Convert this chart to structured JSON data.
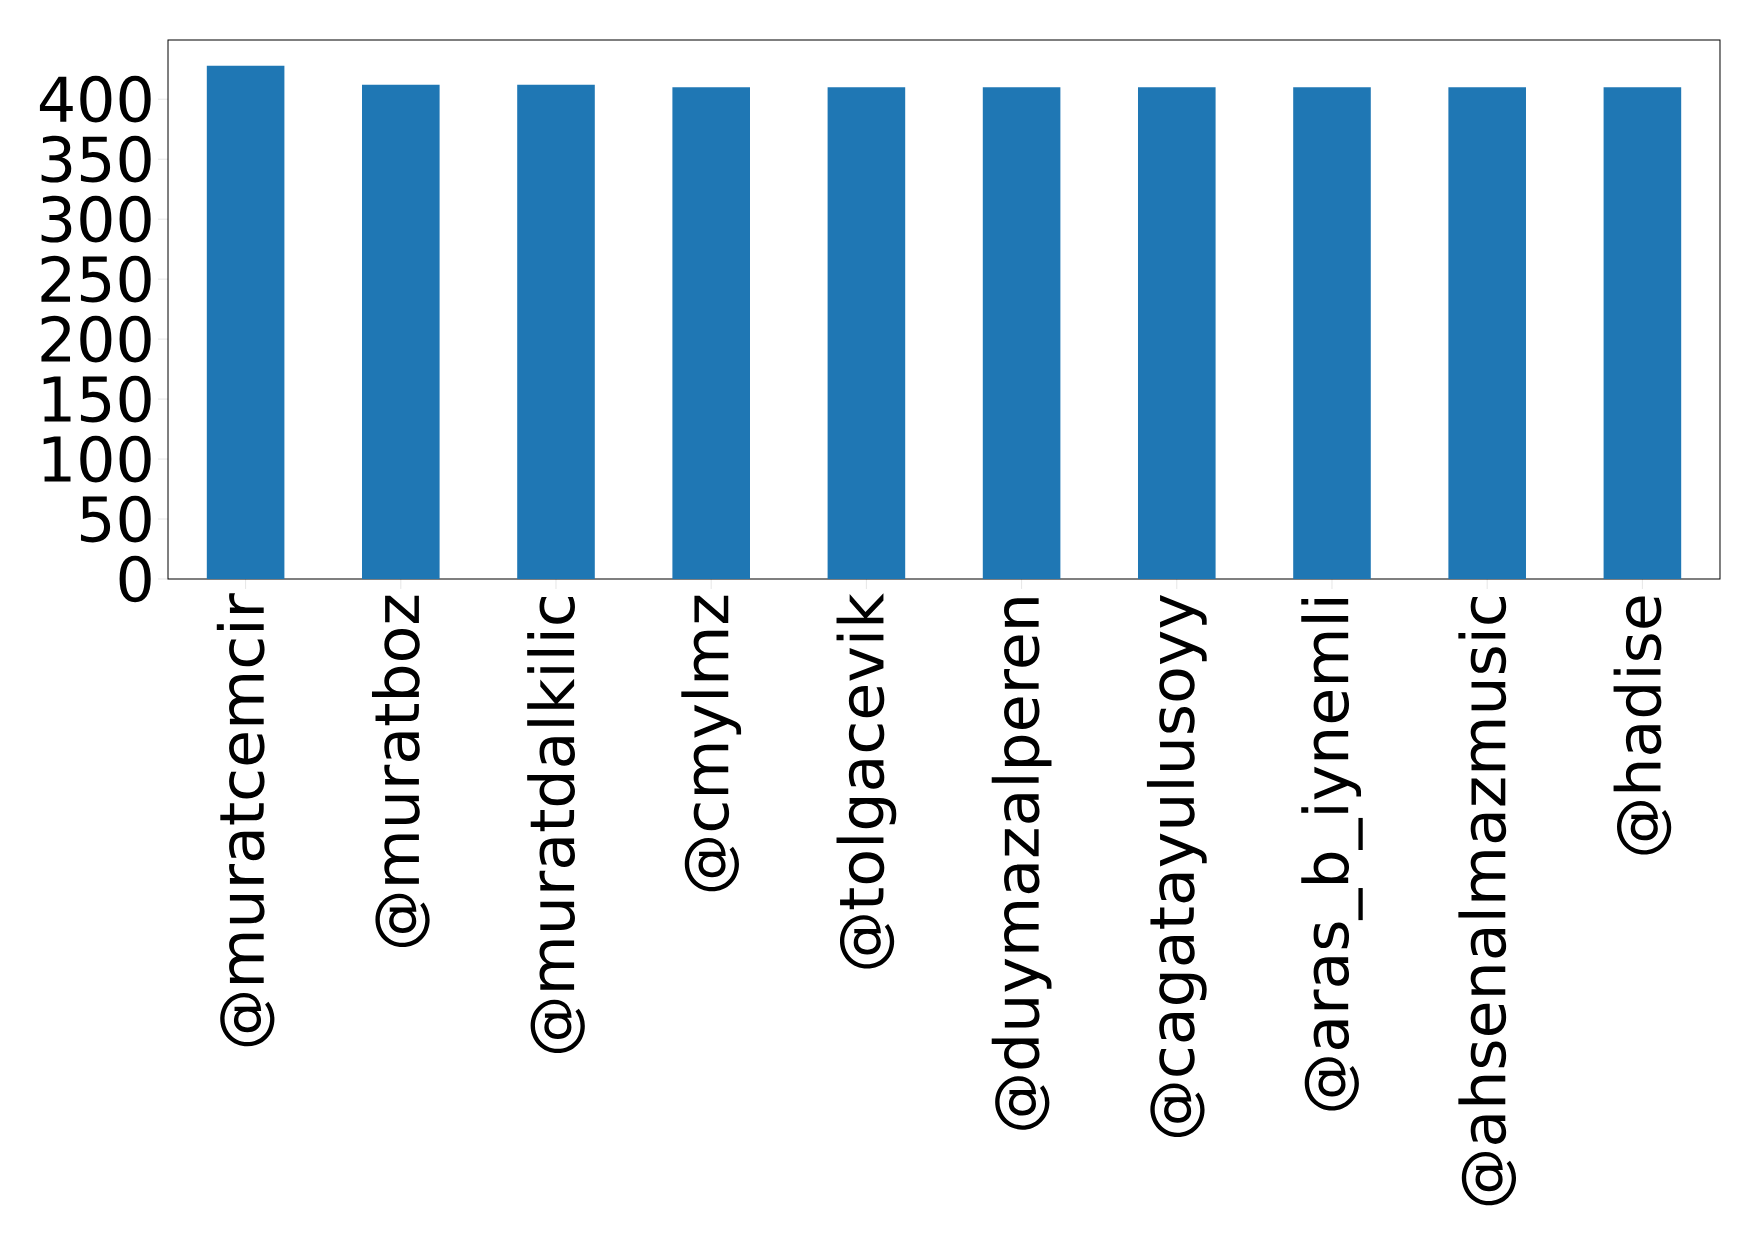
{
  "chart_data": {
    "type": "bar",
    "categories": [
      "@muratcemcir",
      "@muratboz",
      "@muratdalkilic",
      "@cmylmz",
      "@tolgacevik",
      "@duymazalperen",
      "@cagatayulusoyy",
      "@aras_b_iynemli",
      "@ahsenalmazmusic",
      "@hadise"
    ],
    "values": [
      428,
      412,
      412,
      410,
      410,
      410,
      410,
      410,
      410,
      410
    ],
    "color": "#1f77b4",
    "ylim": [
      0,
      449.4
    ],
    "yticks": [
      0,
      50,
      100,
      150,
      200,
      250,
      300,
      350,
      400
    ]
  }
}
